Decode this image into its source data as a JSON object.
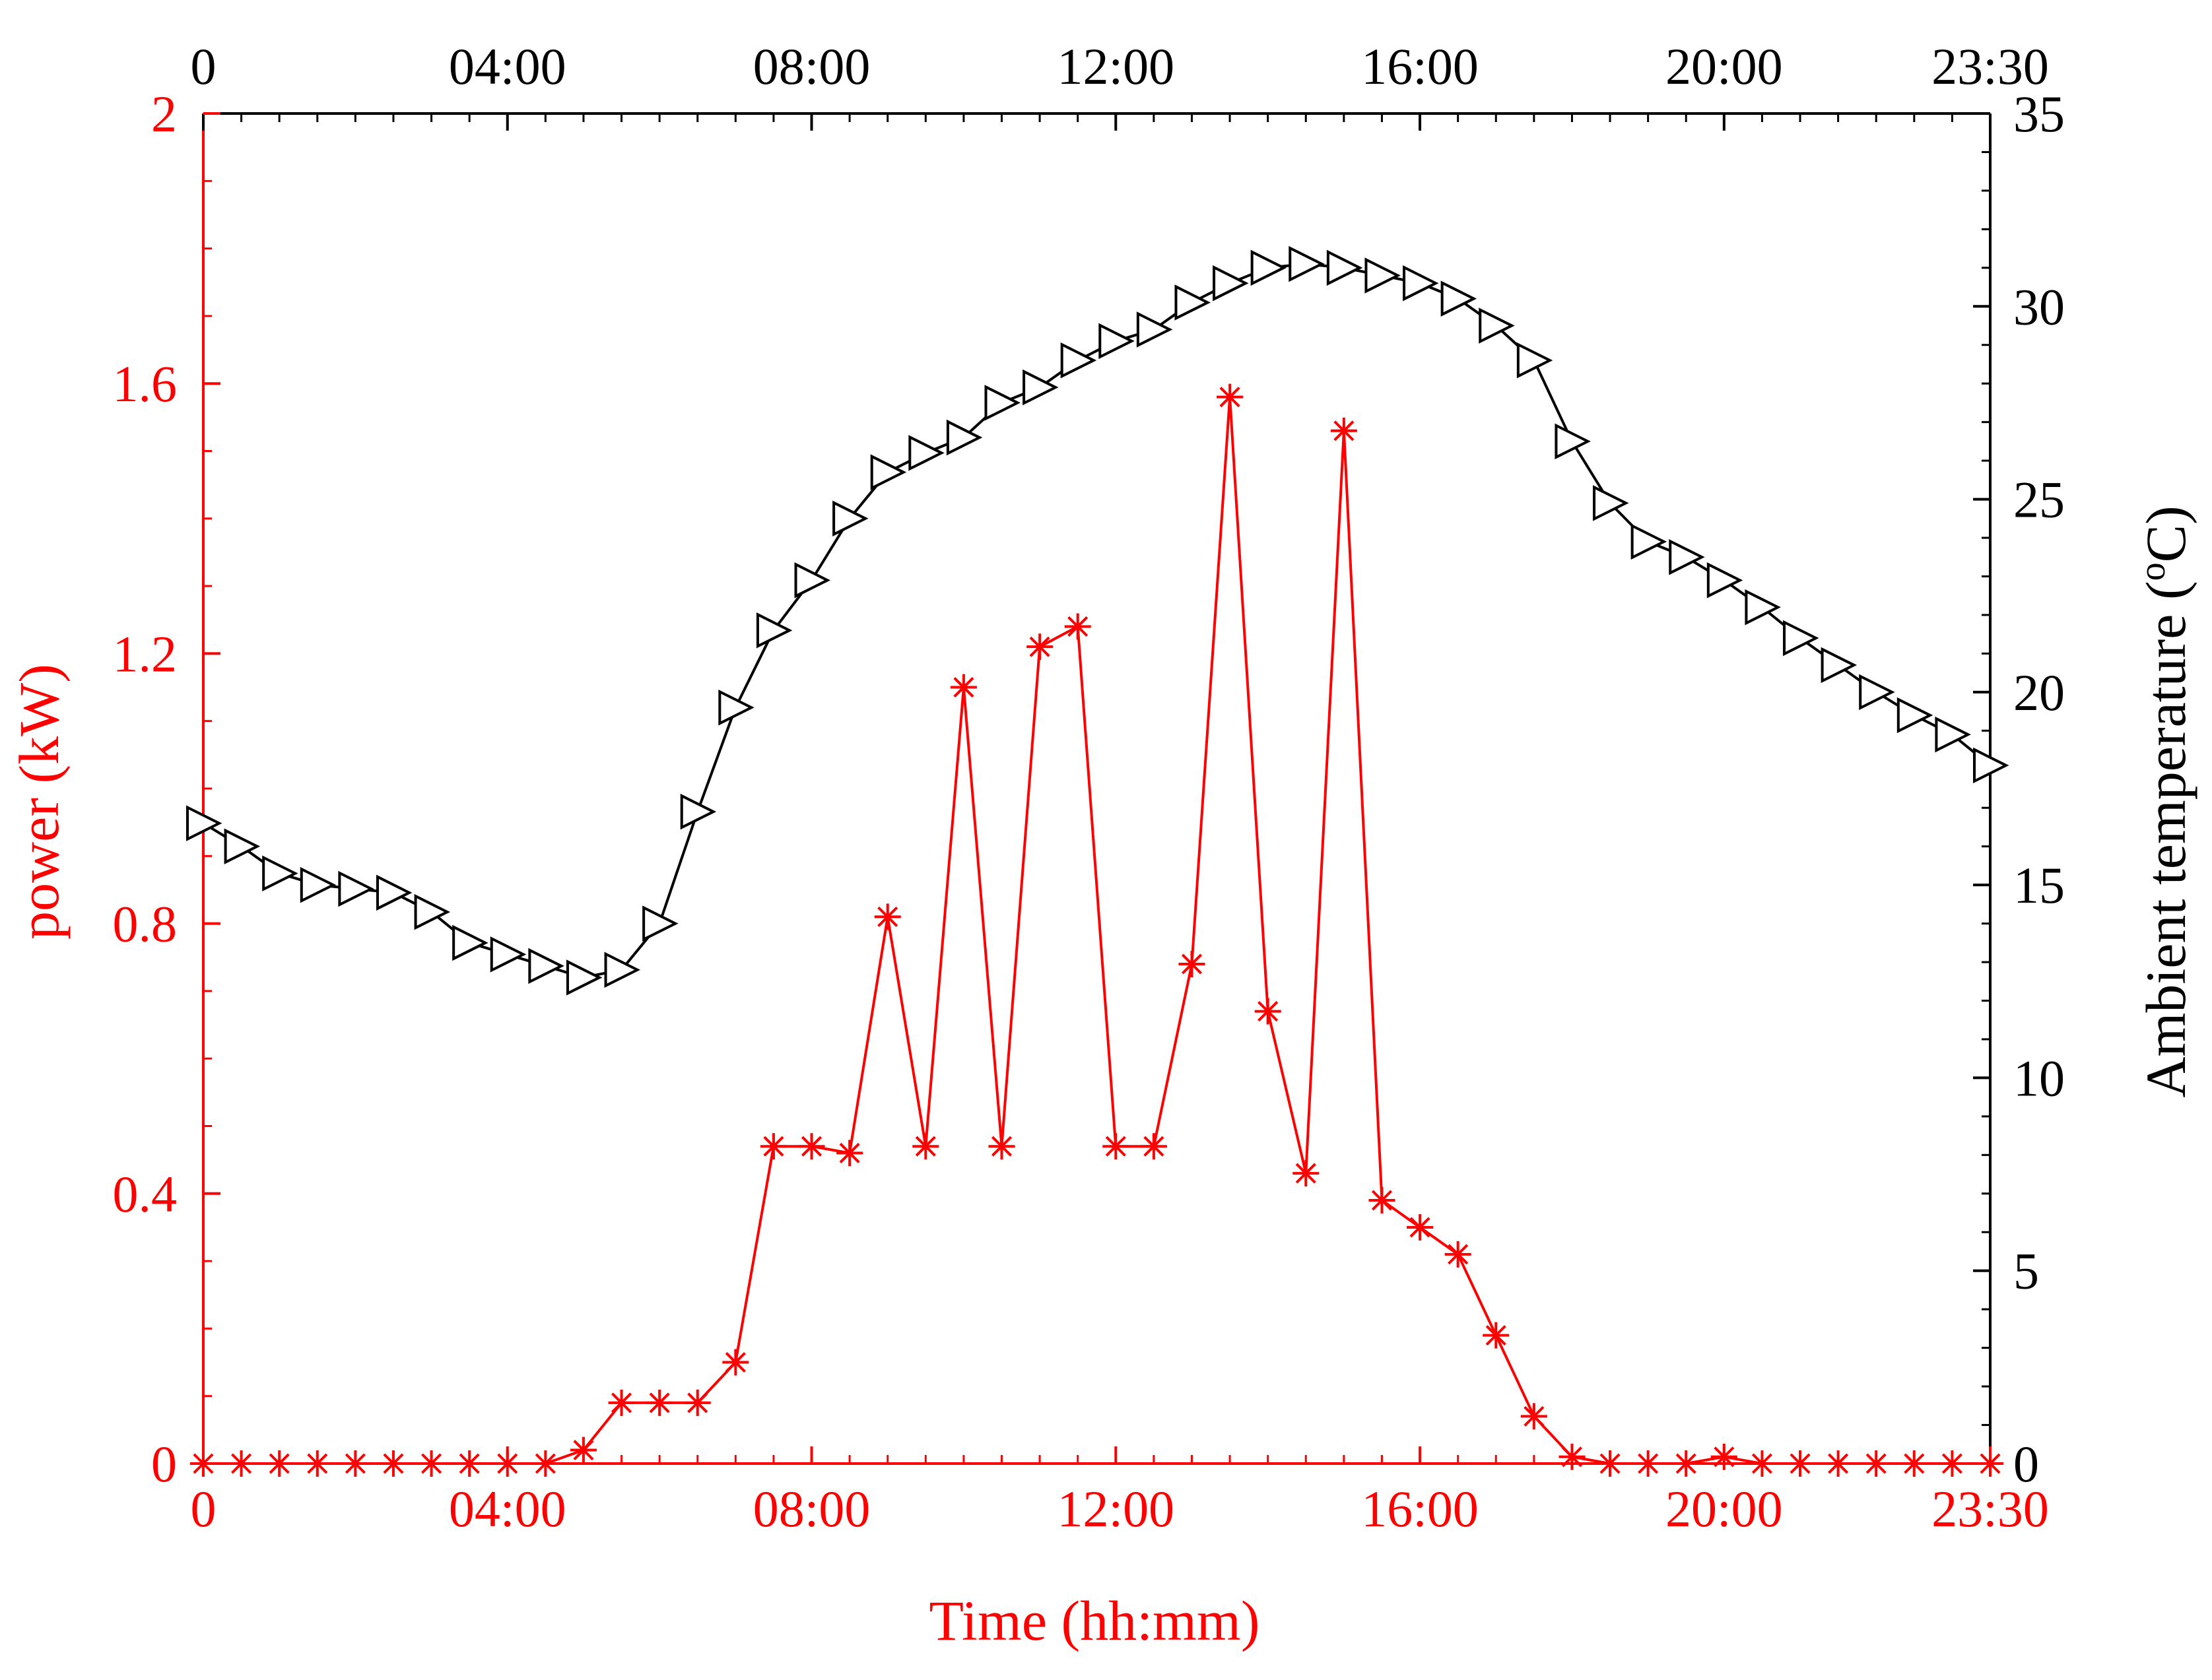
{
  "chart_data": {
    "type": "line",
    "x_axis": {
      "title": "Time (hh:mm)",
      "range": [
        0,
        23.5
      ],
      "ticks": [
        0,
        4,
        8,
        12,
        16,
        20,
        23.5
      ],
      "tick_labels": [
        "0",
        "04:00",
        "08:00",
        "12:00",
        "16:00",
        "20:00",
        "23:30"
      ],
      "tick_color": "#ff0000",
      "top_tick_labels": [
        "0",
        "04:00",
        "08:00",
        "12:00",
        "16:00",
        "20:00",
        "23:30"
      ],
      "top_tick_color": "#000000"
    },
    "y_left": {
      "title": "power (kW)",
      "range": [
        0,
        2
      ],
      "ticks": [
        0,
        0.4,
        0.8,
        1.2,
        1.6,
        2
      ],
      "tick_labels": [
        "0",
        "0.4",
        "0.8",
        "1.2",
        "1.6",
        "2"
      ],
      "color": "#ff0000"
    },
    "y_right": {
      "title_main": "Ambient temperature (",
      "title_sup": "o",
      "title_end": "C)",
      "range": [
        0,
        35
      ],
      "ticks": [
        0,
        5,
        10,
        15,
        20,
        25,
        30,
        35
      ],
      "tick_labels": [
        "0",
        "5",
        "10",
        "15",
        "20",
        "25",
        "30",
        "35"
      ],
      "color": "#000000"
    },
    "grid": false,
    "x": [
      0,
      0.5,
      1,
      1.5,
      2,
      2.5,
      3,
      3.5,
      4,
      4.5,
      5,
      5.5,
      6,
      6.5,
      7,
      7.5,
      8,
      8.5,
      9,
      9.5,
      10,
      10.5,
      11,
      11.5,
      12,
      12.5,
      13,
      13.5,
      14,
      14.5,
      15,
      15.5,
      16,
      16.5,
      17,
      17.5,
      18,
      18.5,
      19,
      19.5,
      20,
      20.5,
      21,
      21.5,
      22,
      22.5,
      23,
      23.5
    ],
    "series": [
      {
        "axis": "left",
        "marker": "asterisk",
        "color": "#ff0000",
        "values": [
          0,
          0,
          0,
          0,
          0,
          0,
          0,
          0,
          0,
          0,
          0.02,
          0.09,
          0.09,
          0.09,
          0.15,
          0.47,
          0.47,
          0.46,
          0.81,
          0.47,
          1.15,
          0.47,
          1.21,
          1.24,
          0.47,
          0.47,
          0.74,
          1.58,
          0.67,
          0.43,
          1.53,
          0.39,
          0.35,
          0.31,
          0.19,
          0.07,
          0.01,
          0,
          0,
          0,
          0.01,
          0,
          0,
          0,
          0,
          0,
          0,
          0
        ]
      },
      {
        "axis": "right",
        "marker": "triangle-right",
        "color": "#000000",
        "values": [
          16.6,
          16.0,
          15.3,
          15.0,
          14.9,
          14.8,
          14.3,
          13.5,
          13.2,
          12.9,
          12.6,
          12.8,
          14.0,
          16.9,
          19.6,
          21.6,
          22.9,
          24.5,
          25.7,
          26.2,
          26.6,
          27.5,
          27.9,
          28.6,
          29.1,
          29.4,
          30.1,
          30.6,
          31.0,
          31.1,
          31.0,
          30.8,
          30.6,
          30.2,
          29.5,
          28.6,
          26.5,
          24.9,
          23.9,
          23.5,
          22.9,
          22.2,
          21.4,
          20.7,
          20.0,
          19.4,
          18.9,
          18.1
        ]
      }
    ]
  }
}
